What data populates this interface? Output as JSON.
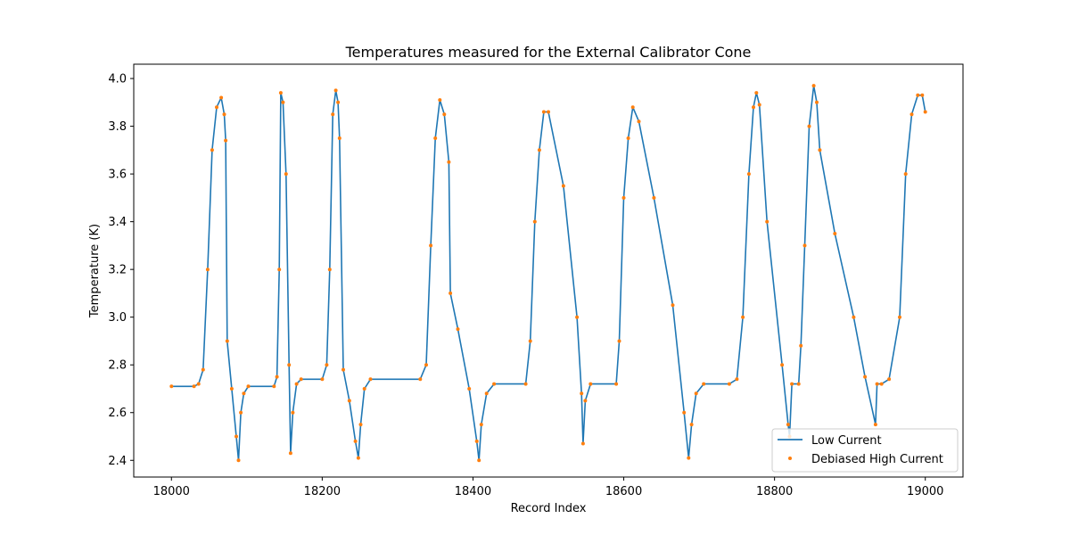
{
  "chart_data": {
    "type": "line",
    "title": "Temperatures measured for the External Calibrator Cone",
    "xlabel": "Record Index",
    "ylabel": "Temperature (K)",
    "xlim": [
      17950,
      19050
    ],
    "ylim": [
      2.33,
      4.06
    ],
    "xticks": [
      18000,
      18200,
      18400,
      18600,
      18800,
      19000
    ],
    "yticks": [
      2.4,
      2.6,
      2.8,
      3.0,
      3.2,
      3.4,
      3.6,
      3.8,
      4.0
    ],
    "xtick_labels": [
      "18000",
      "18200",
      "18400",
      "18600",
      "18800",
      "19000"
    ],
    "ytick_labels": [
      "2.4",
      "2.6",
      "2.8",
      "3.0",
      "3.2",
      "3.4",
      "3.6",
      "3.8",
      "4.0"
    ],
    "grid": false,
    "legend_position": "bottom-right",
    "series": [
      {
        "name": "Low Current",
        "style": "line",
        "color": "#1f77b4",
        "x": [
          18000,
          18030,
          18036,
          18042,
          18048,
          18054,
          18060,
          18066,
          18070,
          18072,
          18074,
          18080,
          18086,
          18089,
          18092,
          18096,
          18102,
          18136,
          18140,
          18143,
          18145,
          18148,
          18152,
          18156,
          18158,
          18161,
          18166,
          18172,
          18200,
          18206,
          18210,
          18214,
          18218,
          18221,
          18223,
          18228,
          18236,
          18244,
          18248,
          18251,
          18256,
          18264,
          18330,
          18338,
          18344,
          18350,
          18356,
          18362,
          18368,
          18370,
          18380,
          18395,
          18405,
          18408,
          18411,
          18418,
          18428,
          18470,
          18476,
          18482,
          18488,
          18494,
          18500,
          18520,
          18538,
          18544,
          18546,
          18549,
          18556,
          18590,
          18594,
          18600,
          18606,
          18612,
          18620,
          18640,
          18665,
          18680,
          18686,
          18690,
          18696,
          18706,
          18740,
          18750,
          18758,
          18766,
          18772,
          18776,
          18780,
          18790,
          18810,
          18818,
          18820,
          18823,
          18832,
          18835,
          18840,
          18846,
          18852,
          18856,
          18860,
          18880,
          18905,
          18920,
          18934,
          18936,
          18942,
          18952,
          18966,
          18974,
          18982,
          18990,
          18996,
          19000
        ],
        "y": [
          2.71,
          2.71,
          2.72,
          2.78,
          3.2,
          3.7,
          3.88,
          3.92,
          3.85,
          3.74,
          2.9,
          2.7,
          2.5,
          2.4,
          2.6,
          2.68,
          2.71,
          2.71,
          2.75,
          3.2,
          3.94,
          3.9,
          3.6,
          2.8,
          2.43,
          2.6,
          2.72,
          2.74,
          2.74,
          2.8,
          3.2,
          3.85,
          3.95,
          3.9,
          3.75,
          2.78,
          2.65,
          2.48,
          2.41,
          2.55,
          2.7,
          2.74,
          2.74,
          2.8,
          3.3,
          3.75,
          3.91,
          3.85,
          3.65,
          3.1,
          2.95,
          2.7,
          2.48,
          2.4,
          2.55,
          2.68,
          2.72,
          2.72,
          2.9,
          3.4,
          3.7,
          3.86,
          3.86,
          3.55,
          3.0,
          2.68,
          2.47,
          2.65,
          2.72,
          2.72,
          2.9,
          3.5,
          3.75,
          3.88,
          3.82,
          3.5,
          3.05,
          2.6,
          2.41,
          2.55,
          2.68,
          2.72,
          2.72,
          2.74,
          3.0,
          3.6,
          3.88,
          3.94,
          3.89,
          3.4,
          2.8,
          2.55,
          2.5,
          2.72,
          2.72,
          2.88,
          3.3,
          3.8,
          3.97,
          3.9,
          3.7,
          3.35,
          3.0,
          2.75,
          2.55,
          2.72,
          2.72,
          2.74,
          3.0,
          3.6,
          3.85,
          3.93,
          3.93,
          3.86
        ]
      },
      {
        "name": "Debiased High Current",
        "style": "scatter",
        "color": "#ff7f0e",
        "x": [
          18000,
          18030,
          18036,
          18042,
          18048,
          18054,
          18060,
          18066,
          18070,
          18072,
          18074,
          18080,
          18086,
          18089,
          18092,
          18096,
          18102,
          18136,
          18140,
          18143,
          18145,
          18148,
          18152,
          18156,
          18158,
          18161,
          18166,
          18172,
          18200,
          18206,
          18210,
          18214,
          18218,
          18221,
          18223,
          18228,
          18236,
          18244,
          18248,
          18251,
          18256,
          18264,
          18330,
          18338,
          18344,
          18350,
          18356,
          18362,
          18368,
          18370,
          18380,
          18395,
          18405,
          18408,
          18411,
          18418,
          18428,
          18470,
          18476,
          18482,
          18488,
          18494,
          18500,
          18520,
          18538,
          18544,
          18546,
          18549,
          18556,
          18590,
          18594,
          18600,
          18606,
          18612,
          18620,
          18640,
          18665,
          18680,
          18686,
          18690,
          18696,
          18706,
          18740,
          18750,
          18758,
          18766,
          18772,
          18776,
          18780,
          18790,
          18810,
          18818,
          18820,
          18823,
          18832,
          18835,
          18840,
          18846,
          18852,
          18856,
          18860,
          18880,
          18905,
          18920,
          18934,
          18936,
          18942,
          18952,
          18966,
          18974,
          18982,
          18990,
          18996,
          19000
        ],
        "y": [
          2.71,
          2.71,
          2.72,
          2.78,
          3.2,
          3.7,
          3.88,
          3.92,
          3.85,
          3.74,
          2.9,
          2.7,
          2.5,
          2.4,
          2.6,
          2.68,
          2.71,
          2.71,
          2.75,
          3.2,
          3.94,
          3.9,
          3.6,
          2.8,
          2.43,
          2.6,
          2.72,
          2.74,
          2.74,
          2.8,
          3.2,
          3.85,
          3.95,
          3.9,
          3.75,
          2.78,
          2.65,
          2.48,
          2.41,
          2.55,
          2.7,
          2.74,
          2.74,
          2.8,
          3.3,
          3.75,
          3.91,
          3.85,
          3.65,
          3.1,
          2.95,
          2.7,
          2.48,
          2.4,
          2.55,
          2.68,
          2.72,
          2.72,
          2.9,
          3.4,
          3.7,
          3.86,
          3.86,
          3.55,
          3.0,
          2.68,
          2.47,
          2.65,
          2.72,
          2.72,
          2.9,
          3.5,
          3.75,
          3.88,
          3.82,
          3.5,
          3.05,
          2.6,
          2.41,
          2.55,
          2.68,
          2.72,
          2.72,
          2.74,
          3.0,
          3.6,
          3.88,
          3.94,
          3.89,
          3.4,
          2.8,
          2.55,
          2.5,
          2.72,
          2.72,
          2.88,
          3.3,
          3.8,
          3.97,
          3.9,
          3.7,
          3.35,
          3.0,
          2.75,
          2.55,
          2.72,
          2.72,
          2.74,
          3.0,
          3.6,
          3.85,
          3.93,
          3.93,
          3.86
        ]
      }
    ]
  }
}
